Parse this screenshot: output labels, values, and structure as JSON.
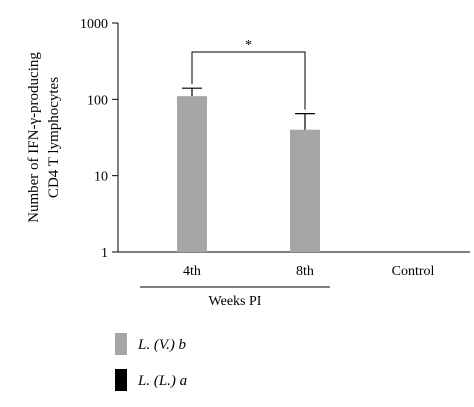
{
  "chart_data": {
    "type": "bar",
    "title": "",
    "xlabel": "",
    "ylabel_lines": [
      "Number of IFN-γ-producing",
      "CD4 T lymphocytes"
    ],
    "y_scale": "log",
    "ylim": [
      1,
      1000
    ],
    "y_ticks": [
      1,
      10,
      100,
      1000
    ],
    "y_tick_labels": [
      "1",
      "10",
      "100",
      "1000"
    ],
    "categories": [
      "4th",
      "8th",
      "Control"
    ],
    "group_label": "Weeks PI",
    "group_categories": [
      "4th",
      "8th"
    ],
    "series": [
      {
        "name": "L. (V.) b",
        "color": "#a6a6a6",
        "values": [
          110,
          40,
          null
        ],
        "error_upper": [
          140,
          65,
          null
        ]
      },
      {
        "name": "L. (L.) a",
        "color": "#000000",
        "values": [
          null,
          null,
          null
        ],
        "error_upper": [
          null,
          null,
          null
        ]
      }
    ],
    "significance": {
      "from": "4th",
      "to": "8th",
      "label": "*"
    },
    "grid": false,
    "legend_position": "bottom-left"
  }
}
